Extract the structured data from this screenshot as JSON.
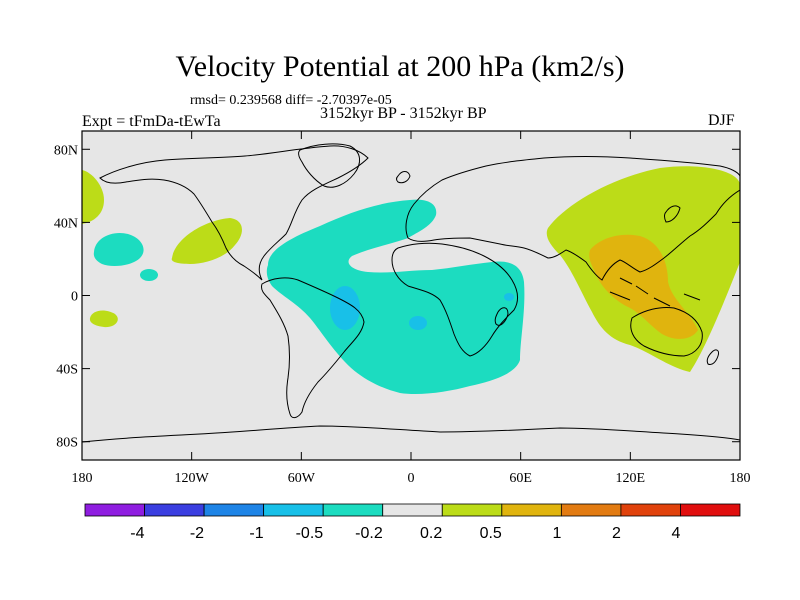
{
  "title": "Velocity Potential at 200 hPa (km2/s)",
  "stats": "rmsd= 0.239568 diff= -2.70397e-05",
  "left_label": "Expt = tFmDa-tEwTa",
  "center_label": "3152kyr BP - 3152kyr BP",
  "right_label": "DJF",
  "map": {
    "lon_range": [
      -180,
      180
    ],
    "lat_range": [
      -90,
      90
    ],
    "lat_ticks": [
      {
        "value": 80,
        "label": "80N"
      },
      {
        "value": 40,
        "label": "40N"
      },
      {
        "value": 0,
        "label": "0"
      },
      {
        "value": -40,
        "label": "40S"
      },
      {
        "value": -80,
        "label": "80S"
      }
    ],
    "lon_ticks": [
      {
        "value": -180,
        "label": "180"
      },
      {
        "value": -120,
        "label": "120W"
      },
      {
        "value": -60,
        "label": "60W"
      },
      {
        "value": 0,
        "label": "0"
      },
      {
        "value": 60,
        "label": "60E"
      },
      {
        "value": 120,
        "label": "120E"
      },
      {
        "value": 180,
        "label": "180"
      }
    ],
    "background_color": "#e6e6e6"
  },
  "colorbar": {
    "colors": [
      "#8f1de0",
      "#3a3ee0",
      "#1e84e6",
      "#18c0e8",
      "#1cdcc0",
      "#e6e6e6",
      "#bcdc18",
      "#e0b40e",
      "#e27b12",
      "#e0420c",
      "#e00e0e"
    ],
    "labels": [
      "-4",
      "-2",
      "-1",
      "-0.5",
      "-0.2",
      "0.2",
      "0.5",
      "1",
      "2",
      "4"
    ]
  }
}
